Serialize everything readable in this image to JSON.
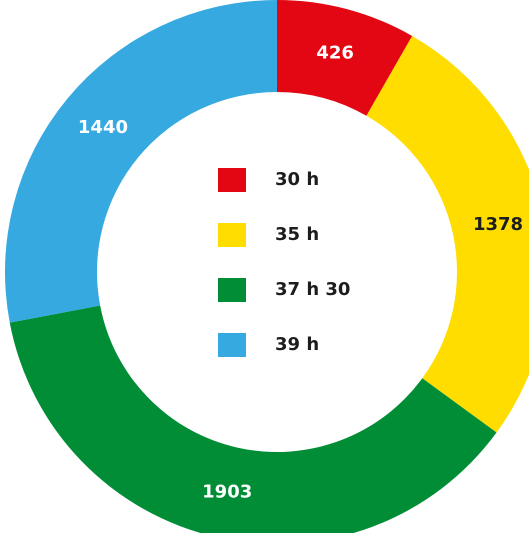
{
  "chart_data": {
    "type": "donut",
    "categories": [
      "30 h",
      "35 h",
      "37 h 30",
      "39 h"
    ],
    "values": [
      426,
      1378,
      1903,
      1440
    ],
    "colors": [
      "#e30613",
      "#ffdd00",
      "#008d36",
      "#36a9e1"
    ]
  }
}
